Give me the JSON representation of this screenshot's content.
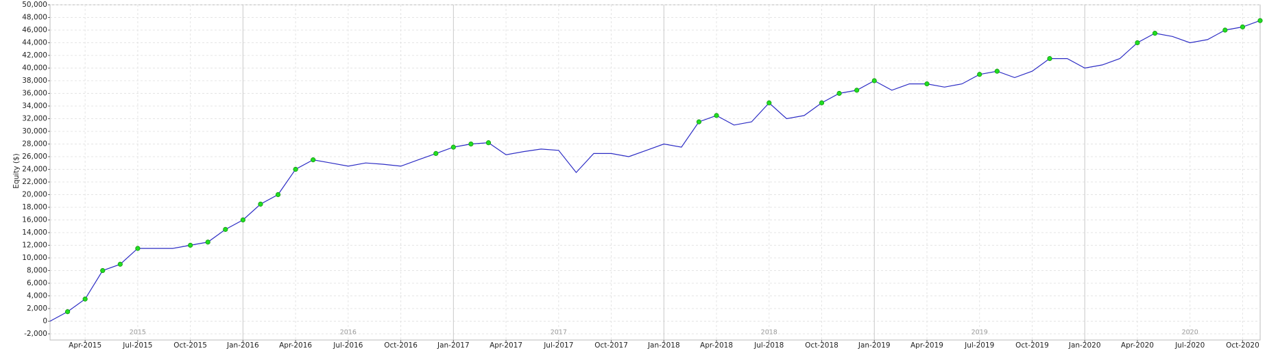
{
  "chart_data": {
    "type": "line",
    "y_axis_label": "Equity ($)",
    "x": [
      "Feb-2015",
      "Mar-2015",
      "Apr-2015",
      "May-2015",
      "Jun-2015",
      "Jul-2015",
      "Aug-2015",
      "Sep-2015",
      "Oct-2015",
      "Nov-2015",
      "Dec-2015",
      "Jan-2016",
      "Feb-2016",
      "Mar-2016",
      "Apr-2016",
      "May-2016",
      "Jun-2016",
      "Jul-2016",
      "Aug-2016",
      "Sep-2016",
      "Oct-2016",
      "Nov-2016",
      "Dec-2016",
      "Jan-2017",
      "Feb-2017",
      "Mar-2017",
      "Apr-2017",
      "May-2017",
      "Jun-2017",
      "Jul-2017",
      "Aug-2017",
      "Sep-2017",
      "Oct-2017",
      "Nov-2017",
      "Dec-2017",
      "Jan-2018",
      "Feb-2018",
      "Mar-2018",
      "Apr-2018",
      "May-2018",
      "Jun-2018",
      "Jul-2018",
      "Aug-2018",
      "Sep-2018",
      "Oct-2018",
      "Nov-2018",
      "Dec-2018",
      "Jan-2019",
      "Feb-2019",
      "Mar-2019",
      "Apr-2019",
      "May-2019",
      "Jun-2019",
      "Jul-2019",
      "Aug-2019",
      "Sep-2019",
      "Oct-2019",
      "Nov-2019",
      "Dec-2019",
      "Jan-2020",
      "Feb-2020",
      "Mar-2020",
      "Apr-2020",
      "May-2020",
      "Jun-2020",
      "Jul-2020",
      "Aug-2020",
      "Sep-2020",
      "Oct-2020",
      "Nov-2020"
    ],
    "series": [
      {
        "color": "#2b2bc4",
        "style": "line",
        "values": [
          0,
          1500,
          3500,
          8000,
          9000,
          11500,
          11500,
          11500,
          12000,
          12500,
          14500,
          16000,
          18500,
          20000,
          24000,
          25500,
          25000,
          24500,
          25000,
          24800,
          24500,
          25500,
          26500,
          27500,
          28000,
          28200,
          26300,
          26800,
          27200,
          27000,
          23500,
          26500,
          26500,
          26000,
          27000,
          28000,
          27500,
          31500,
          32500,
          31000,
          31500,
          34500,
          32000,
          32500,
          34500,
          36000,
          36500,
          38000,
          36500,
          37500,
          37500,
          37000,
          37500,
          39000,
          39500,
          38500,
          39500,
          41500,
          41500,
          40000,
          40500,
          41500,
          44000,
          45500,
          45000,
          44000,
          44500,
          46000,
          46500,
          47500
        ]
      },
      {
        "color": "#22dd22",
        "style": "markers",
        "values": [
          null,
          1500,
          3500,
          8000,
          9000,
          11500,
          null,
          null,
          12000,
          12500,
          14500,
          16000,
          18500,
          20000,
          24000,
          25500,
          null,
          null,
          null,
          null,
          null,
          null,
          26500,
          27500,
          28000,
          28200,
          null,
          null,
          null,
          null,
          null,
          null,
          null,
          null,
          null,
          null,
          null,
          31500,
          32500,
          null,
          null,
          34500,
          null,
          null,
          34500,
          36000,
          36500,
          38000,
          null,
          null,
          37500,
          null,
          null,
          39000,
          39500,
          null,
          null,
          41500,
          null,
          null,
          null,
          null,
          44000,
          45500,
          null,
          null,
          null,
          46000,
          46500,
          47500
        ]
      }
    ],
    "xlim": [
      "Feb-2015",
      "Nov-2020"
    ],
    "xticks": [
      "Apr-2015",
      "Jul-2015",
      "Oct-2015",
      "Jan-2016",
      "Apr-2016",
      "Jul-2016",
      "Oct-2016",
      "Jan-2017",
      "Apr-2017",
      "Jul-2017",
      "Oct-2017",
      "Jan-2018",
      "Apr-2018",
      "Jul-2018",
      "Oct-2018",
      "Jan-2019",
      "Apr-2019",
      "Jul-2019",
      "Oct-2019",
      "Jan-2020",
      "Apr-2020",
      "Jul-2020",
      "Oct-2020"
    ],
    "year_labels": [
      "2015",
      "2016",
      "2017",
      "2018",
      "2019",
      "2020"
    ],
    "ylim": [
      -2000,
      50000
    ],
    "yticks": [
      {
        "value": -2000,
        "label": "-2,000"
      },
      0,
      {
        "value": 2000,
        "label": "2,000"
      },
      {
        "value": 4000,
        "label": "4,000"
      },
      {
        "value": 6000,
        "label": "6,000"
      },
      {
        "value": 8000,
        "label": "8,000"
      },
      {
        "value": 10000,
        "label": "10,000"
      },
      {
        "value": 12000,
        "label": "12,000"
      },
      {
        "value": 14000,
        "label": "14,000"
      },
      {
        "value": 16000,
        "label": "16,000"
      },
      {
        "value": 18000,
        "label": "18,000"
      },
      {
        "value": 20000,
        "label": "20,000"
      },
      {
        "value": 22000,
        "label": "22,000"
      },
      {
        "value": 24000,
        "label": "24,000"
      },
      {
        "value": 26000,
        "label": "26,000"
      },
      {
        "value": 28000,
        "label": "28,000"
      },
      {
        "value": 30000,
        "label": "30,000"
      },
      {
        "value": 32000,
        "label": "32,000"
      },
      {
        "value": 34000,
        "label": "34,000"
      },
      {
        "value": 36000,
        "label": "36,000"
      },
      {
        "value": 38000,
        "label": "38,000"
      },
      {
        "value": 40000,
        "label": "40,000"
      },
      {
        "value": 42000,
        "label": "42,000"
      },
      {
        "value": 44000,
        "label": "44,000"
      },
      {
        "value": 46000,
        "label": "46,000"
      },
      {
        "value": 48000,
        "label": "48,000"
      },
      {
        "value": 50000,
        "label": "50,000"
      }
    ],
    "grid": true
  }
}
